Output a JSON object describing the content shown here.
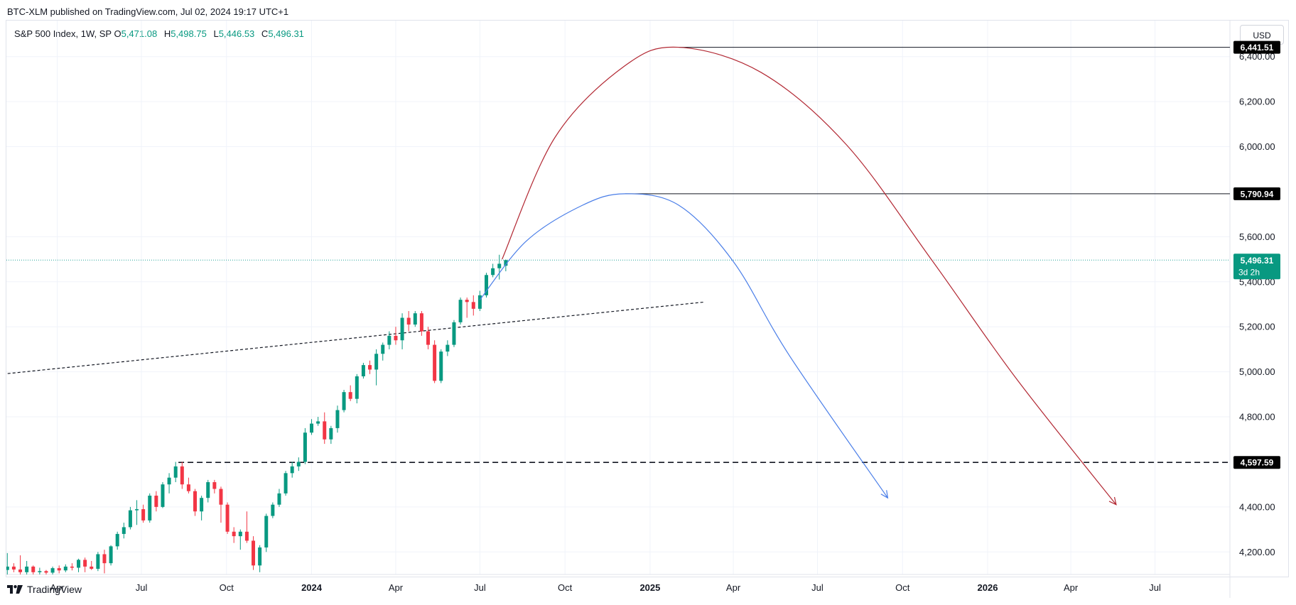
{
  "header": {
    "published": "BTC-XLM published on TradingView.com, Jul 02, 2024 19:17 UTC+1"
  },
  "legend": {
    "symbol": "S&P 500 Index, 1W, SP",
    "o_label": "O",
    "o_value": "5,471.08",
    "h_label": "H",
    "h_value": "5,498.75",
    "l_label": "L",
    "l_value": "5,446.53",
    "c_label": "C",
    "c_value": "5,496.31"
  },
  "currency_button": "USD",
  "footer": {
    "brand": "TradingView"
  },
  "colors": {
    "up": "#089981",
    "down": "#f23645",
    "red_curve": "#b22833",
    "blue_curve": "#4a7ee8",
    "price_line": "#26a69a",
    "label_dark": "#000000"
  },
  "chart_data": {
    "type": "candlestick",
    "title": "S&P 500 Index, 1W, SP",
    "y_range": [
      4100,
      6560
    ],
    "x_range": [
      "2023-02-05",
      "2026-09-20"
    ],
    "y_ticks": [
      {
        "value": 4200,
        "label": "4,200.00"
      },
      {
        "value": 4400,
        "label": "4,400.00"
      },
      {
        "value": 4800,
        "label": "4,800.00"
      },
      {
        "value": 5000,
        "label": "5,000.00"
      },
      {
        "value": 5200,
        "label": "5,200.00"
      },
      {
        "value": 5400,
        "label": "5,400.00"
      },
      {
        "value": 5600,
        "label": "5,600.00"
      },
      {
        "value": 6000,
        "label": "6,000.00"
      },
      {
        "value": 6200,
        "label": "6,200.00"
      },
      {
        "value": 6400,
        "label": "6,400.00"
      }
    ],
    "x_ticks": [
      {
        "date": "2023-04-01",
        "label": "Apr",
        "bold": false
      },
      {
        "date": "2023-07-01",
        "label": "Jul",
        "bold": false
      },
      {
        "date": "2023-10-01",
        "label": "Oct",
        "bold": false
      },
      {
        "date": "2024-01-01",
        "label": "2024",
        "bold": true
      },
      {
        "date": "2024-04-01",
        "label": "Apr",
        "bold": false
      },
      {
        "date": "2024-07-01",
        "label": "Jul",
        "bold": false
      },
      {
        "date": "2024-10-01",
        "label": "Oct",
        "bold": false
      },
      {
        "date": "2025-01-01",
        "label": "2025",
        "bold": true
      },
      {
        "date": "2025-04-01",
        "label": "Apr",
        "bold": false
      },
      {
        "date": "2025-07-01",
        "label": "Jul",
        "bold": false
      },
      {
        "date": "2025-10-01",
        "label": "Oct",
        "bold": false
      },
      {
        "date": "2026-01-01",
        "label": "2026",
        "bold": true
      },
      {
        "date": "2026-04-01",
        "label": "Apr",
        "bold": false
      },
      {
        "date": "2026-07-01",
        "label": "Jul",
        "bold": false
      }
    ],
    "candles": [
      {
        "d": "2023-02-06",
        "o": 4120,
        "h": 4195,
        "l": 4100,
        "c": 4135
      },
      {
        "d": "2023-02-13",
        "o": 4135,
        "h": 4150,
        "l": 4110,
        "c": 4122
      },
      {
        "d": "2023-02-20",
        "o": 4122,
        "h": 4185,
        "l": 4100,
        "c": 4110
      },
      {
        "d": "2023-02-27",
        "o": 4110,
        "h": 4160,
        "l": 4100,
        "c": 4135
      },
      {
        "d": "2023-03-06",
        "o": 4135,
        "h": 4140,
        "l": 4100,
        "c": 4110
      },
      {
        "d": "2023-03-13",
        "o": 4110,
        "h": 4130,
        "l": 4100,
        "c": 4115
      },
      {
        "d": "2023-03-20",
        "o": 4115,
        "h": 4120,
        "l": 4100,
        "c": 4108
      },
      {
        "d": "2023-03-27",
        "o": 4108,
        "h": 4135,
        "l": 4100,
        "c": 4128
      },
      {
        "d": "2023-04-03",
        "o": 4128,
        "h": 4140,
        "l": 4105,
        "c": 4118
      },
      {
        "d": "2023-04-10",
        "o": 4118,
        "h": 4145,
        "l": 4110,
        "c": 4135
      },
      {
        "d": "2023-04-17",
        "o": 4135,
        "h": 4150,
        "l": 4118,
        "c": 4130
      },
      {
        "d": "2023-04-24",
        "o": 4130,
        "h": 4170,
        "l": 4110,
        "c": 4165
      },
      {
        "d": "2023-05-01",
        "o": 4165,
        "h": 4175,
        "l": 4110,
        "c": 4135
      },
      {
        "d": "2023-05-08",
        "o": 4135,
        "h": 4160,
        "l": 4120,
        "c": 4125
      },
      {
        "d": "2023-05-15",
        "o": 4125,
        "h": 4200,
        "l": 4115,
        "c": 4190
      },
      {
        "d": "2023-05-22",
        "o": 4190,
        "h": 4210,
        "l": 4105,
        "c": 4150
      },
      {
        "d": "2023-05-29",
        "o": 4150,
        "h": 4230,
        "l": 4140,
        "c": 4225
      },
      {
        "d": "2023-06-05",
        "o": 4225,
        "h": 4290,
        "l": 4210,
        "c": 4280
      },
      {
        "d": "2023-06-12",
        "o": 4280,
        "h": 4330,
        "l": 4260,
        "c": 4310
      },
      {
        "d": "2023-06-19",
        "o": 4310,
        "h": 4400,
        "l": 4300,
        "c": 4385
      },
      {
        "d": "2023-06-26",
        "o": 4385,
        "h": 4430,
        "l": 4320,
        "c": 4390
      },
      {
        "d": "2023-07-03",
        "o": 4390,
        "h": 4410,
        "l": 4330,
        "c": 4340
      },
      {
        "d": "2023-07-10",
        "o": 4340,
        "h": 4460,
        "l": 4330,
        "c": 4450
      },
      {
        "d": "2023-07-17",
        "o": 4450,
        "h": 4470,
        "l": 4380,
        "c": 4400
      },
      {
        "d": "2023-07-24",
        "o": 4400,
        "h": 4510,
        "l": 4395,
        "c": 4500
      },
      {
        "d": "2023-07-31",
        "o": 4500,
        "h": 4550,
        "l": 4460,
        "c": 4530
      },
      {
        "d": "2023-08-07",
        "o": 4530,
        "h": 4600,
        "l": 4510,
        "c": 4580
      },
      {
        "d": "2023-08-14",
        "o": 4580,
        "h": 4600,
        "l": 4480,
        "c": 4500
      },
      {
        "d": "2023-08-21",
        "o": 4500,
        "h": 4530,
        "l": 4460,
        "c": 4470
      },
      {
        "d": "2023-08-28",
        "o": 4470,
        "h": 4480,
        "l": 4360,
        "c": 4380
      },
      {
        "d": "2023-09-04",
        "o": 4380,
        "h": 4450,
        "l": 4340,
        "c": 4440
      },
      {
        "d": "2023-09-11",
        "o": 4440,
        "h": 4520,
        "l": 4420,
        "c": 4510
      },
      {
        "d": "2023-09-18",
        "o": 4510,
        "h": 4520,
        "l": 4460,
        "c": 4480
      },
      {
        "d": "2023-09-25",
        "o": 4480,
        "h": 4490,
        "l": 4330,
        "c": 4410
      },
      {
        "d": "2023-10-02",
        "o": 4410,
        "h": 4420,
        "l": 4280,
        "c": 4290
      },
      {
        "d": "2023-10-09",
        "o": 4290,
        "h": 4310,
        "l": 4240,
        "c": 4270
      },
      {
        "d": "2023-10-16",
        "o": 4270,
        "h": 4300,
        "l": 4210,
        "c": 4290
      },
      {
        "d": "2023-10-23",
        "o": 4290,
        "h": 4380,
        "l": 4240,
        "c": 4250
      },
      {
        "d": "2023-10-30",
        "o": 4250,
        "h": 4270,
        "l": 4120,
        "c": 4140
      },
      {
        "d": "2023-11-06",
        "o": 4140,
        "h": 4230,
        "l": 4110,
        "c": 4220
      },
      {
        "d": "2023-11-13",
        "o": 4220,
        "h": 4370,
        "l": 4200,
        "c": 4360
      },
      {
        "d": "2023-11-20",
        "o": 4360,
        "h": 4420,
        "l": 4350,
        "c": 4410
      },
      {
        "d": "2023-11-27",
        "o": 4410,
        "h": 4480,
        "l": 4400,
        "c": 4460
      },
      {
        "d": "2023-12-04",
        "o": 4460,
        "h": 4560,
        "l": 4450,
        "c": 4550
      },
      {
        "d": "2023-12-11",
        "o": 4550,
        "h": 4600,
        "l": 4530,
        "c": 4580
      },
      {
        "d": "2023-12-18",
        "o": 4580,
        "h": 4620,
        "l": 4560,
        "c": 4600
      },
      {
        "d": "2023-12-25",
        "o": 4600,
        "h": 4750,
        "l": 4590,
        "c": 4730
      },
      {
        "d": "2024-01-01",
        "o": 4730,
        "h": 4790,
        "l": 4720,
        "c": 4770
      },
      {
        "d": "2024-01-08",
        "o": 4770,
        "h": 4800,
        "l": 4760,
        "c": 4780
      },
      {
        "d": "2024-01-15",
        "o": 4780,
        "h": 4820,
        "l": 4680,
        "c": 4700
      },
      {
        "d": "2024-01-22",
        "o": 4700,
        "h": 4760,
        "l": 4680,
        "c": 4750
      },
      {
        "d": "2024-01-29",
        "o": 4750,
        "h": 4850,
        "l": 4730,
        "c": 4830
      },
      {
        "d": "2024-02-05",
        "o": 4830,
        "h": 4920,
        "l": 4820,
        "c": 4910
      },
      {
        "d": "2024-02-12",
        "o": 4910,
        "h": 4940,
        "l": 4870,
        "c": 4880
      },
      {
        "d": "2024-02-19",
        "o": 4880,
        "h": 4990,
        "l": 4860,
        "c": 4980
      },
      {
        "d": "2024-02-26",
        "o": 4980,
        "h": 5040,
        "l": 4970,
        "c": 5030
      },
      {
        "d": "2024-03-04",
        "o": 5030,
        "h": 5050,
        "l": 4990,
        "c": 5010
      },
      {
        "d": "2024-03-11",
        "o": 5010,
        "h": 5100,
        "l": 4940,
        "c": 5080
      },
      {
        "d": "2024-03-18",
        "o": 5080,
        "h": 5130,
        "l": 5050,
        "c": 5120
      },
      {
        "d": "2024-03-25",
        "o": 5120,
        "h": 5180,
        "l": 5100,
        "c": 5160
      },
      {
        "d": "2024-04-01",
        "o": 5160,
        "h": 5200,
        "l": 5120,
        "c": 5140
      },
      {
        "d": "2024-04-08",
        "o": 5140,
        "h": 5260,
        "l": 5100,
        "c": 5240
      },
      {
        "d": "2024-04-15",
        "o": 5240,
        "h": 5270,
        "l": 5180,
        "c": 5210
      },
      {
        "d": "2024-04-22",
        "o": 5210,
        "h": 5270,
        "l": 5200,
        "c": 5260
      },
      {
        "d": "2024-04-29",
        "o": 5260,
        "h": 5270,
        "l": 5160,
        "c": 5180
      },
      {
        "d": "2024-05-06",
        "o": 5180,
        "h": 5200,
        "l": 5100,
        "c": 5120
      },
      {
        "d": "2024-05-13",
        "o": 5120,
        "h": 5140,
        "l": 4950,
        "c": 4960
      },
      {
        "d": "2024-05-20",
        "o": 4960,
        "h": 5100,
        "l": 4950,
        "c": 5090
      },
      {
        "d": "2024-05-27",
        "o": 5090,
        "h": 5140,
        "l": 5070,
        "c": 5120
      },
      {
        "d": "2024-06-03",
        "o": 5120,
        "h": 5230,
        "l": 5110,
        "c": 5220
      },
      {
        "d": "2024-06-10",
        "o": 5220,
        "h": 5330,
        "l": 5210,
        "c": 5320
      },
      {
        "d": "2024-06-17",
        "o": 5320,
        "h": 5330,
        "l": 5240,
        "c": 5310
      },
      {
        "d": "2024-06-24",
        "o": 5310,
        "h": 5340,
        "l": 5250,
        "c": 5280
      },
      {
        "d": "2024-07-01",
        "o": 5280,
        "h": 5360,
        "l": 5270,
        "c": 5340
      },
      {
        "d": "2024-07-08",
        "o": 5340,
        "h": 5440,
        "l": 5330,
        "c": 5430
      },
      {
        "d": "2024-07-15",
        "o": 5430,
        "h": 5480,
        "l": 5420,
        "c": 5460
      },
      {
        "d": "2024-07-22",
        "o": 5460,
        "h": 5520,
        "l": 5410,
        "c": 5480
      },
      {
        "d": "2024-07-29",
        "o": 5471.08,
        "h": 5498.75,
        "l": 5446.53,
        "c": 5496.31
      }
    ],
    "horizontal_levels": [
      {
        "value": 6441.51,
        "label": "6,441.51",
        "from": "2025-02-01",
        "style": "solid"
      },
      {
        "value": 5790.94,
        "label": "5,790.94",
        "from": "2024-12-05",
        "style": "solid"
      },
      {
        "value": 4597.59,
        "label": "4,597.59",
        "from": "2023-08-10",
        "style": "dashed"
      }
    ],
    "current_price": {
      "value": 5496.31,
      "label": "5,496.31",
      "countdown": "3d 2h"
    },
    "trend_line": {
      "from": {
        "d": "2023-02-01",
        "v": 4990
      },
      "to": {
        "d": "2025-03-01",
        "v": 5310
      }
    },
    "projection_red": [
      {
        "d": "2024-07-25",
        "v": 5500
      },
      {
        "d": "2024-09-20",
        "v": 6040
      },
      {
        "d": "2024-12-05",
        "v": 6360
      },
      {
        "d": "2025-02-01",
        "v": 6441.51
      },
      {
        "d": "2025-05-01",
        "v": 6330
      },
      {
        "d": "2025-08-01",
        "v": 6010
      },
      {
        "d": "2025-11-01",
        "v": 5500
      },
      {
        "d": "2026-02-01",
        "v": 4970
      },
      {
        "d": "2026-05-20",
        "v": 4410
      }
    ],
    "projection_blue": [
      {
        "d": "2024-07-01",
        "v": 5320
      },
      {
        "d": "2024-08-20",
        "v": 5580
      },
      {
        "d": "2024-10-20",
        "v": 5740
      },
      {
        "d": "2024-12-05",
        "v": 5790.94
      },
      {
        "d": "2025-02-01",
        "v": 5740
      },
      {
        "d": "2025-04-01",
        "v": 5490
      },
      {
        "d": "2025-06-01",
        "v": 5070
      },
      {
        "d": "2025-09-15",
        "v": 4440
      }
    ]
  }
}
